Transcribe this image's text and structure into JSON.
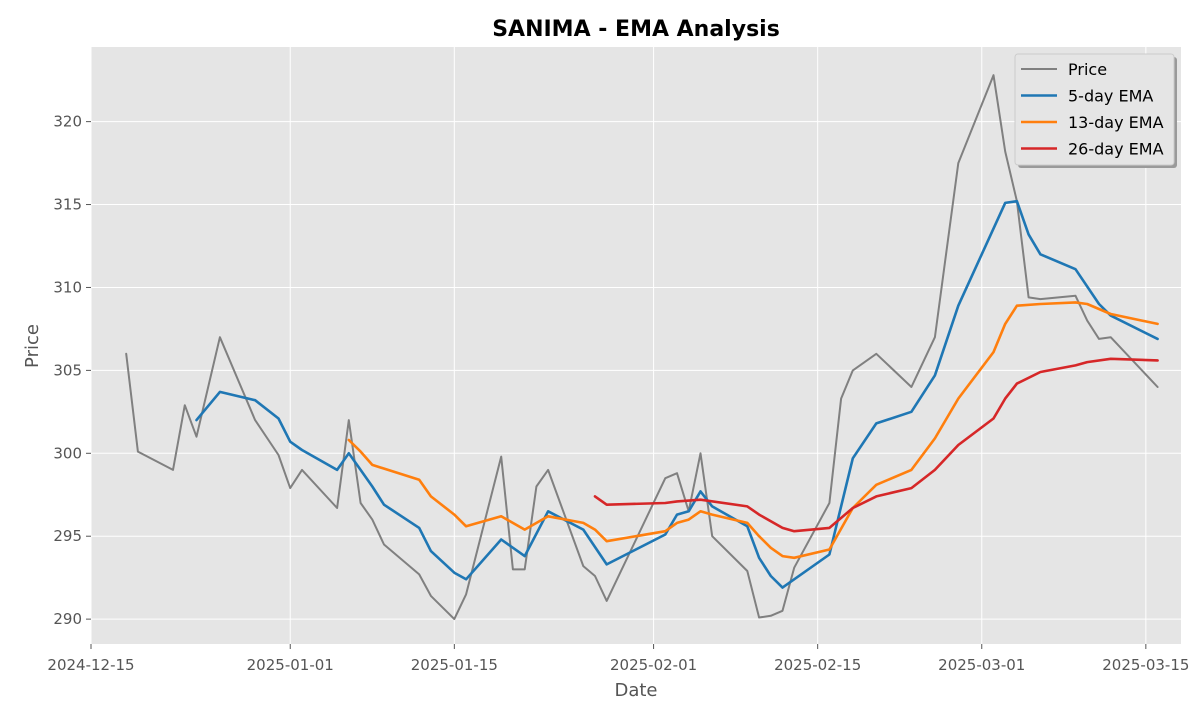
{
  "chart_data": {
    "type": "line",
    "title": "SANIMA - EMA Analysis",
    "xlabel": "Date",
    "ylabel": "Price",
    "x_type": "date",
    "xlim": [
      "2024-12-15",
      "2025-03-18"
    ],
    "ylim": [
      288.5,
      324.5
    ],
    "x_ticks": [
      "2024-12-15",
      "2025-01-01",
      "2025-01-15",
      "2025-02-01",
      "2025-02-15",
      "2025-03-01",
      "2025-03-15"
    ],
    "x_tick_labels": [
      "2024-12-15",
      "2025-01-01",
      "2025-01-15",
      "2025-02-01",
      "2025-02-15",
      "2025-03-01",
      "2025-03-15"
    ],
    "y_ticks": [
      290,
      295,
      300,
      305,
      310,
      315,
      320
    ],
    "grid": true,
    "legend_position": "top-right",
    "series": [
      {
        "name": "Price",
        "color": "#808080",
        "points": [
          [
            "2024-12-18",
            306.0
          ],
          [
            "2024-12-19",
            300.1
          ],
          [
            "2024-12-22",
            299.0
          ],
          [
            "2024-12-23",
            302.9
          ],
          [
            "2024-12-24",
            301.0
          ],
          [
            "2024-12-26",
            307.0
          ],
          [
            "2024-12-29",
            302.0
          ],
          [
            "2024-12-31",
            299.9
          ],
          [
            "2025-01-01",
            297.9
          ],
          [
            "2025-01-02",
            299.0
          ],
          [
            "2025-01-05",
            296.7
          ],
          [
            "2025-01-06",
            302.0
          ],
          [
            "2025-01-07",
            297.0
          ],
          [
            "2025-01-08",
            296.0
          ],
          [
            "2025-01-09",
            294.5
          ],
          [
            "2025-01-12",
            292.7
          ],
          [
            "2025-01-13",
            291.4
          ],
          [
            "2025-01-15",
            290.0
          ],
          [
            "2025-01-16",
            291.5
          ],
          [
            "2025-01-19",
            299.8
          ],
          [
            "2025-01-20",
            293.0
          ],
          [
            "2025-01-21",
            293.0
          ],
          [
            "2025-01-22",
            298.0
          ],
          [
            "2025-01-23",
            299.0
          ],
          [
            "2025-01-26",
            293.2
          ],
          [
            "2025-01-27",
            292.6
          ],
          [
            "2025-01-28",
            291.1
          ],
          [
            "2025-02-02",
            298.5
          ],
          [
            "2025-02-03",
            298.8
          ],
          [
            "2025-02-04",
            296.5
          ],
          [
            "2025-02-05",
            300.0
          ],
          [
            "2025-02-06",
            295.0
          ],
          [
            "2025-02-09",
            292.9
          ],
          [
            "2025-02-10",
            290.1
          ],
          [
            "2025-02-11",
            290.2
          ],
          [
            "2025-02-12",
            290.5
          ],
          [
            "2025-02-13",
            293.1
          ],
          [
            "2025-02-16",
            297.0
          ],
          [
            "2025-02-17",
            303.3
          ],
          [
            "2025-02-18",
            305.0
          ],
          [
            "2025-02-20",
            306.0
          ],
          [
            "2025-02-23",
            304.0
          ],
          [
            "2025-02-25",
            307.0
          ],
          [
            "2025-02-27",
            317.5
          ],
          [
            "2025-03-02",
            322.8
          ],
          [
            "2025-03-03",
            318.2
          ],
          [
            "2025-03-04",
            315.2
          ],
          [
            "2025-03-05",
            309.4
          ],
          [
            "2025-03-06",
            309.3
          ],
          [
            "2025-03-09",
            309.5
          ],
          [
            "2025-03-10",
            308.0
          ],
          [
            "2025-03-11",
            306.9
          ],
          [
            "2025-03-12",
            307.0
          ],
          [
            "2025-03-16",
            304.0
          ]
        ]
      },
      {
        "name": "5-day EMA",
        "color": "#1f77b4",
        "points": [
          [
            "2024-12-24",
            302.0
          ],
          [
            "2024-12-26",
            303.7
          ],
          [
            "2024-12-29",
            303.2
          ],
          [
            "2024-12-31",
            302.1
          ],
          [
            "2025-01-01",
            300.7
          ],
          [
            "2025-01-02",
            300.2
          ],
          [
            "2025-01-05",
            299.0
          ],
          [
            "2025-01-06",
            300.0
          ],
          [
            "2025-01-07",
            299.0
          ],
          [
            "2025-01-08",
            298.0
          ],
          [
            "2025-01-09",
            296.9
          ],
          [
            "2025-01-12",
            295.5
          ],
          [
            "2025-01-13",
            294.1
          ],
          [
            "2025-01-15",
            292.8
          ],
          [
            "2025-01-16",
            292.4
          ],
          [
            "2025-01-19",
            294.8
          ],
          [
            "2025-01-21",
            293.8
          ],
          [
            "2025-01-23",
            296.5
          ],
          [
            "2025-01-26",
            295.4
          ],
          [
            "2025-01-28",
            293.3
          ],
          [
            "2025-02-02",
            295.1
          ],
          [
            "2025-02-03",
            296.3
          ],
          [
            "2025-02-04",
            296.5
          ],
          [
            "2025-02-05",
            297.7
          ],
          [
            "2025-02-06",
            296.8
          ],
          [
            "2025-02-09",
            295.6
          ],
          [
            "2025-02-10",
            293.7
          ],
          [
            "2025-02-11",
            292.6
          ],
          [
            "2025-02-12",
            291.9
          ],
          [
            "2025-02-16",
            293.9
          ],
          [
            "2025-02-18",
            299.7
          ],
          [
            "2025-02-20",
            301.8
          ],
          [
            "2025-02-23",
            302.5
          ],
          [
            "2025-02-25",
            304.7
          ],
          [
            "2025-02-27",
            308.9
          ],
          [
            "2025-03-03",
            315.1
          ],
          [
            "2025-03-04",
            315.2
          ],
          [
            "2025-03-05",
            313.2
          ],
          [
            "2025-03-06",
            312.0
          ],
          [
            "2025-03-09",
            311.1
          ],
          [
            "2025-03-11",
            309.0
          ],
          [
            "2025-03-12",
            308.3
          ],
          [
            "2025-03-16",
            306.9
          ]
        ]
      },
      {
        "name": "13-day EMA",
        "color": "#ff7f0e",
        "points": [
          [
            "2025-01-06",
            300.8
          ],
          [
            "2025-01-07",
            300.1
          ],
          [
            "2025-01-08",
            299.3
          ],
          [
            "2025-01-12",
            298.4
          ],
          [
            "2025-01-13",
            297.4
          ],
          [
            "2025-01-15",
            296.3
          ],
          [
            "2025-01-16",
            295.6
          ],
          [
            "2025-01-19",
            296.2
          ],
          [
            "2025-01-21",
            295.4
          ],
          [
            "2025-01-23",
            296.2
          ],
          [
            "2025-01-26",
            295.8
          ],
          [
            "2025-01-27",
            295.4
          ],
          [
            "2025-01-28",
            294.7
          ],
          [
            "2025-02-02",
            295.3
          ],
          [
            "2025-02-03",
            295.8
          ],
          [
            "2025-02-04",
            296.0
          ],
          [
            "2025-02-05",
            296.5
          ],
          [
            "2025-02-06",
            296.3
          ],
          [
            "2025-02-09",
            295.8
          ],
          [
            "2025-02-10",
            295.0
          ],
          [
            "2025-02-11",
            294.3
          ],
          [
            "2025-02-12",
            293.8
          ],
          [
            "2025-02-13",
            293.7
          ],
          [
            "2025-02-16",
            294.2
          ],
          [
            "2025-02-18",
            296.7
          ],
          [
            "2025-02-20",
            298.1
          ],
          [
            "2025-02-23",
            299.0
          ],
          [
            "2025-02-25",
            300.9
          ],
          [
            "2025-02-27",
            303.3
          ],
          [
            "2025-03-02",
            306.1
          ],
          [
            "2025-03-03",
            307.8
          ],
          [
            "2025-03-04",
            308.9
          ],
          [
            "2025-03-06",
            309.0
          ],
          [
            "2025-03-09",
            309.1
          ],
          [
            "2025-03-10",
            309.0
          ],
          [
            "2025-03-12",
            308.4
          ],
          [
            "2025-03-16",
            307.8
          ]
        ]
      },
      {
        "name": "26-day EMA",
        "color": "#d62728",
        "points": [
          [
            "2025-01-27",
            297.4
          ],
          [
            "2025-01-28",
            296.9
          ],
          [
            "2025-02-02",
            297.0
          ],
          [
            "2025-02-03",
            297.1
          ],
          [
            "2025-02-05",
            297.2
          ],
          [
            "2025-02-09",
            296.8
          ],
          [
            "2025-02-10",
            296.3
          ],
          [
            "2025-02-12",
            295.5
          ],
          [
            "2025-02-13",
            295.3
          ],
          [
            "2025-02-16",
            295.5
          ],
          [
            "2025-02-18",
            296.7
          ],
          [
            "2025-02-20",
            297.4
          ],
          [
            "2025-02-23",
            297.9
          ],
          [
            "2025-02-25",
            299.0
          ],
          [
            "2025-02-27",
            300.5
          ],
          [
            "2025-03-02",
            302.1
          ],
          [
            "2025-03-03",
            303.3
          ],
          [
            "2025-03-04",
            304.2
          ],
          [
            "2025-03-06",
            304.9
          ],
          [
            "2025-03-09",
            305.3
          ],
          [
            "2025-03-10",
            305.5
          ],
          [
            "2025-03-12",
            305.7
          ],
          [
            "2025-03-16",
            305.6
          ]
        ]
      }
    ]
  }
}
